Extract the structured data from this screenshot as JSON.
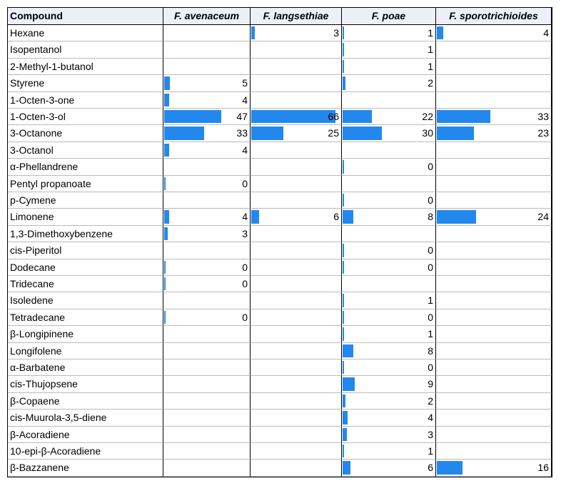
{
  "table": {
    "columns": [
      "Compound",
      "F. avenaceum",
      "F. langsethiae",
      "F. poae",
      "F. sporotrichioides"
    ],
    "rows": [
      [
        "Hexane",
        null,
        3,
        1,
        4
      ],
      [
        "Isopentanol",
        null,
        null,
        1,
        null
      ],
      [
        "2-Methyl-1-butanol",
        null,
        null,
        1,
        null
      ],
      [
        "Styrene",
        5,
        null,
        2,
        null
      ],
      [
        "1-Octen-3-one",
        4,
        null,
        null,
        null
      ],
      [
        "1-Octen-3-ol",
        47,
        66,
        22,
        33
      ],
      [
        "3-Octanone",
        33,
        25,
        30,
        23
      ],
      [
        "3-Octanol",
        4,
        null,
        null,
        null
      ],
      [
        "α-Phellandrene",
        null,
        null,
        0,
        null
      ],
      [
        "Pentyl propanoate",
        0,
        null,
        null,
        null
      ],
      [
        "p-Cymene",
        null,
        null,
        0,
        null
      ],
      [
        "Limonene",
        4,
        6,
        8,
        24
      ],
      [
        "1,3-Dimethoxybenzene",
        3,
        null,
        null,
        null
      ],
      [
        "cis-Piperitol",
        null,
        null,
        0,
        null
      ],
      [
        "Dodecane",
        0,
        null,
        0,
        null
      ],
      [
        "Tridecane",
        0,
        null,
        null,
        null
      ],
      [
        "Isoledene",
        null,
        null,
        1,
        null
      ],
      [
        "Tetradecane",
        0,
        null,
        0,
        null
      ],
      [
        "β-Longipinene",
        null,
        null,
        1,
        null
      ],
      [
        "Longifolene",
        null,
        null,
        8,
        null
      ],
      [
        "α-Barbatene",
        null,
        null,
        0,
        null
      ],
      [
        "cis-Thujopsene",
        null,
        null,
        9,
        null
      ],
      [
        "β-Copaene",
        null,
        null,
        2,
        null
      ],
      [
        "cis-Muurola-3,5-diene",
        null,
        null,
        4,
        null
      ],
      [
        "β-Acoradiene",
        null,
        null,
        3,
        null
      ],
      [
        "10-epi-β-Acoradiene",
        null,
        null,
        1,
        null
      ],
      [
        "β-Bazzanene",
        null,
        null,
        6,
        16
      ]
    ]
  }
}
